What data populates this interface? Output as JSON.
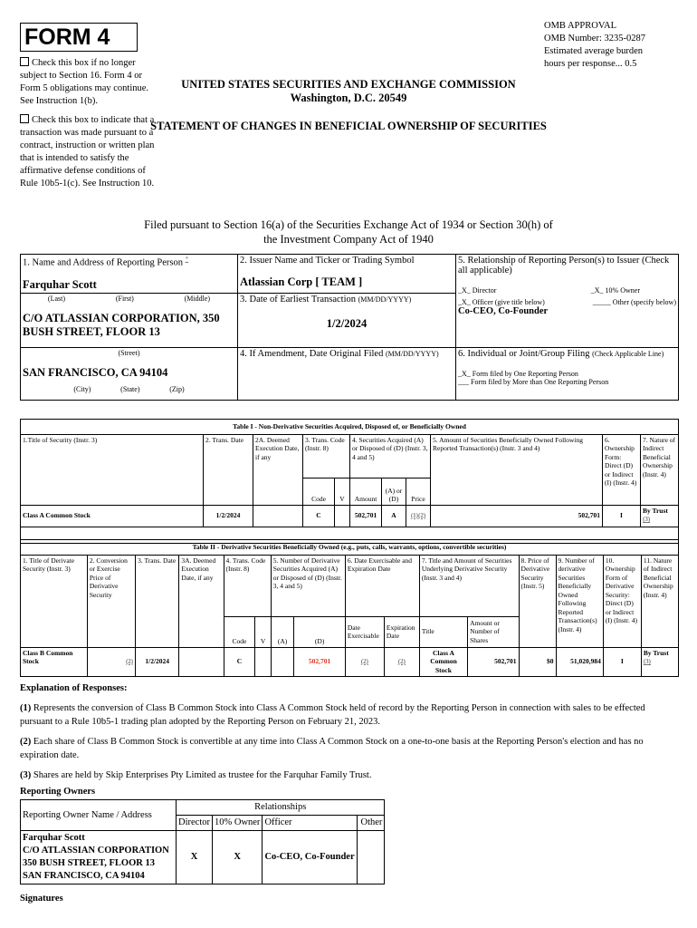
{
  "form_title": "FORM 4",
  "omb": [
    "OMB APPROVAL",
    "OMB Number: 3235-0287",
    "Estimated average burden",
    "hours per response... 0.5"
  ],
  "check1": "Check this box if no longer subject to Section 16. Form 4 or Form 5 obligations may continue. See Instruction 1(b).",
  "check2": "Check this box to indicate that a transaction was made pursuant to a contract, instruction or written plan that is intended to satisfy the affirmative defense conditions of Rule 10b5-1(c). See Instruction 10.",
  "agency": "UNITED STATES SECURITIES AND EXCHANGE COMMISSION",
  "city": "Washington, D.C. 20549",
  "statement": "STATEMENT OF CHANGES IN BENEFICIAL OWNERSHIP OF SECURITIES",
  "filed": "Filed pursuant to Section 16(a) of the Securities Exchange Act of 1934 or Section 30(h) of the Investment Company Act of 1940",
  "box1": {
    "label": "1. Name and Address of Reporting Person",
    "star": "*",
    "name": "Farquhar Scott",
    "last": "(Last)",
    "first": "(First)",
    "middle": "(Middle)",
    "street": "C/O ATLASSIAN CORPORATION, 350 BUSH STREET, FLOOR 13",
    "street_label": "(Street)",
    "citystate": "SAN FRANCISCO, CA 94104",
    "city": "(City)",
    "state": "(State)",
    "zip": "(Zip)"
  },
  "box2": {
    "label": "2. Issuer Name and Ticker or Trading Symbol",
    "value": "Atlassian Corp [ TEAM ]"
  },
  "box3": {
    "label": "3. Date of Earliest Transaction",
    "fmt": "(MM/DD/YYYY)",
    "value": "1/2/2024"
  },
  "box4": {
    "label": "4. If Amendment, Date Original Filed",
    "fmt": "(MM/DD/YYYY)"
  },
  "box5": {
    "label": "5. Relationship of Reporting Person(s) to Issuer (Check all applicable)",
    "director": "_X_ Director",
    "owner": "_X_ 10% Owner",
    "officer": "_X_ Officer (give title below)",
    "other": "_____ Other (specify below)",
    "title": "Co-CEO, Co-Founder"
  },
  "box6": {
    "label": "6. Individual or Joint/Group Filing",
    "note": "(Check Applicable Line)",
    "one": "_X_ Form filed by One Reporting Person",
    "more": "___ Form filed by More than One Reporting Person"
  },
  "table1": {
    "title": "Table I - Non-Derivative Securities Acquired, Disposed of, or Beneficially Owned",
    "h": [
      "1.Title of Security (Instr. 3)",
      "2. Trans. Date",
      "2A. Deemed Execution Date, if any",
      "3. Trans. Code (Instr. 8)",
      "4. Securities Acquired (A) or Disposed of (D) (Instr. 3, 4 and 5)",
      "5. Amount of Securities Beneficially Owned Following Reported Transaction(s) (Instr. 3 and 4)",
      "6. Ownership Form: Direct (D) or Indirect (I) (Instr. 4)",
      "7. Nature of Indirect Beneficial Ownership (Instr. 4)"
    ],
    "sub": [
      "Code",
      "V",
      "Amount",
      "(A) or (D)",
      "Price"
    ],
    "row": {
      "title": "Class A Common Stock",
      "date": "1/2/2024",
      "code": "C",
      "amount": "502,701",
      "ad": "A",
      "price": "(1)(2)",
      "owned": "502,701",
      "form": "I",
      "nature": "By Trust",
      "nature_fn": "(3)"
    }
  },
  "table2": {
    "title": "Table II - Derivative Securities Beneficially Owned (e.g., puts, calls, warrants, options, convertible securities)",
    "h": [
      "1. Title of Derivate Security (Instr. 3)",
      "2. Conversion or Exercise Price of Derivative Security",
      "3. Trans. Date",
      "3A. Deemed Execution Date, if any",
      "4. Trans. Code (Instr. 8)",
      "5. Number of Derivative Securities Acquired (A) or Disposed of (D) (Instr. 3, 4 and 5)",
      "6. Date Exercisable and Expiration Date",
      "7. Title and Amount of Securities Underlying Derivative Security (Instr. 3 and 4)",
      "8. Price of Derivative Security (Instr. 5)",
      "9. Number of derivative Securities Beneficially Owned Following Reported Transaction(s) (Instr. 4)",
      "10. Ownership Form of Derivative Security: Direct (D) or Indirect (I) (Instr. 4)",
      "11. Nature of Indirect Beneficial Ownership (Instr. 4)"
    ],
    "sub": [
      "Code",
      "V",
      "(A)",
      "(D)",
      "Date Exercisable",
      "Expiration Date",
      "Title",
      "Amount or Number of Shares"
    ],
    "row": {
      "title": "Class B Common Stock",
      "conv": "(2)",
      "date": "1/2/2024",
      "code": "C",
      "d": "502,701",
      "exer": "(2)",
      "exp": "(2)",
      "under": "Class A Common Stock",
      "shares": "502,701",
      "price": "$0",
      "owned": "51,020,984",
      "form": "I",
      "nature": "By Trust",
      "nature_fn": "(3)"
    }
  },
  "explanation": {
    "title": "Explanation of Responses:",
    "items": [
      {
        "n": "(1)",
        "t": "Represents the conversion of Class B Common Stock into Class A Common Stock held of record by the Reporting Person in connection with sales to be effected pursuant to a Rule 10b5-1 trading plan adopted by the Reporting Person on February 21, 2023."
      },
      {
        "n": "(2)",
        "t": "Each share of Class B Common Stock is convertible at any time into Class A Common Stock on a one-to-one basis at the Reporting Person's election and has no expiration date."
      },
      {
        "n": "(3)",
        "t": "Shares are held by Skip Enterprises Pty Limited as trustee for the Farquhar Family Trust."
      }
    ]
  },
  "owners": {
    "title": "Reporting Owners",
    "h_name": "Reporting Owner Name / Address",
    "h_rel": "Relationships",
    "h": [
      "Director",
      "10% Owner",
      "Officer",
      "Other"
    ],
    "row": {
      "name": [
        "Farquhar Scott",
        "C/O ATLASSIAN CORPORATION",
        "350 BUSH STREET, FLOOR 13",
        "SAN FRANCISCO, CA 94104"
      ],
      "director": "X",
      "owner": "X",
      "officer": "Co-CEO, Co-Founder",
      "other": ""
    }
  },
  "signatures": "Signatures"
}
